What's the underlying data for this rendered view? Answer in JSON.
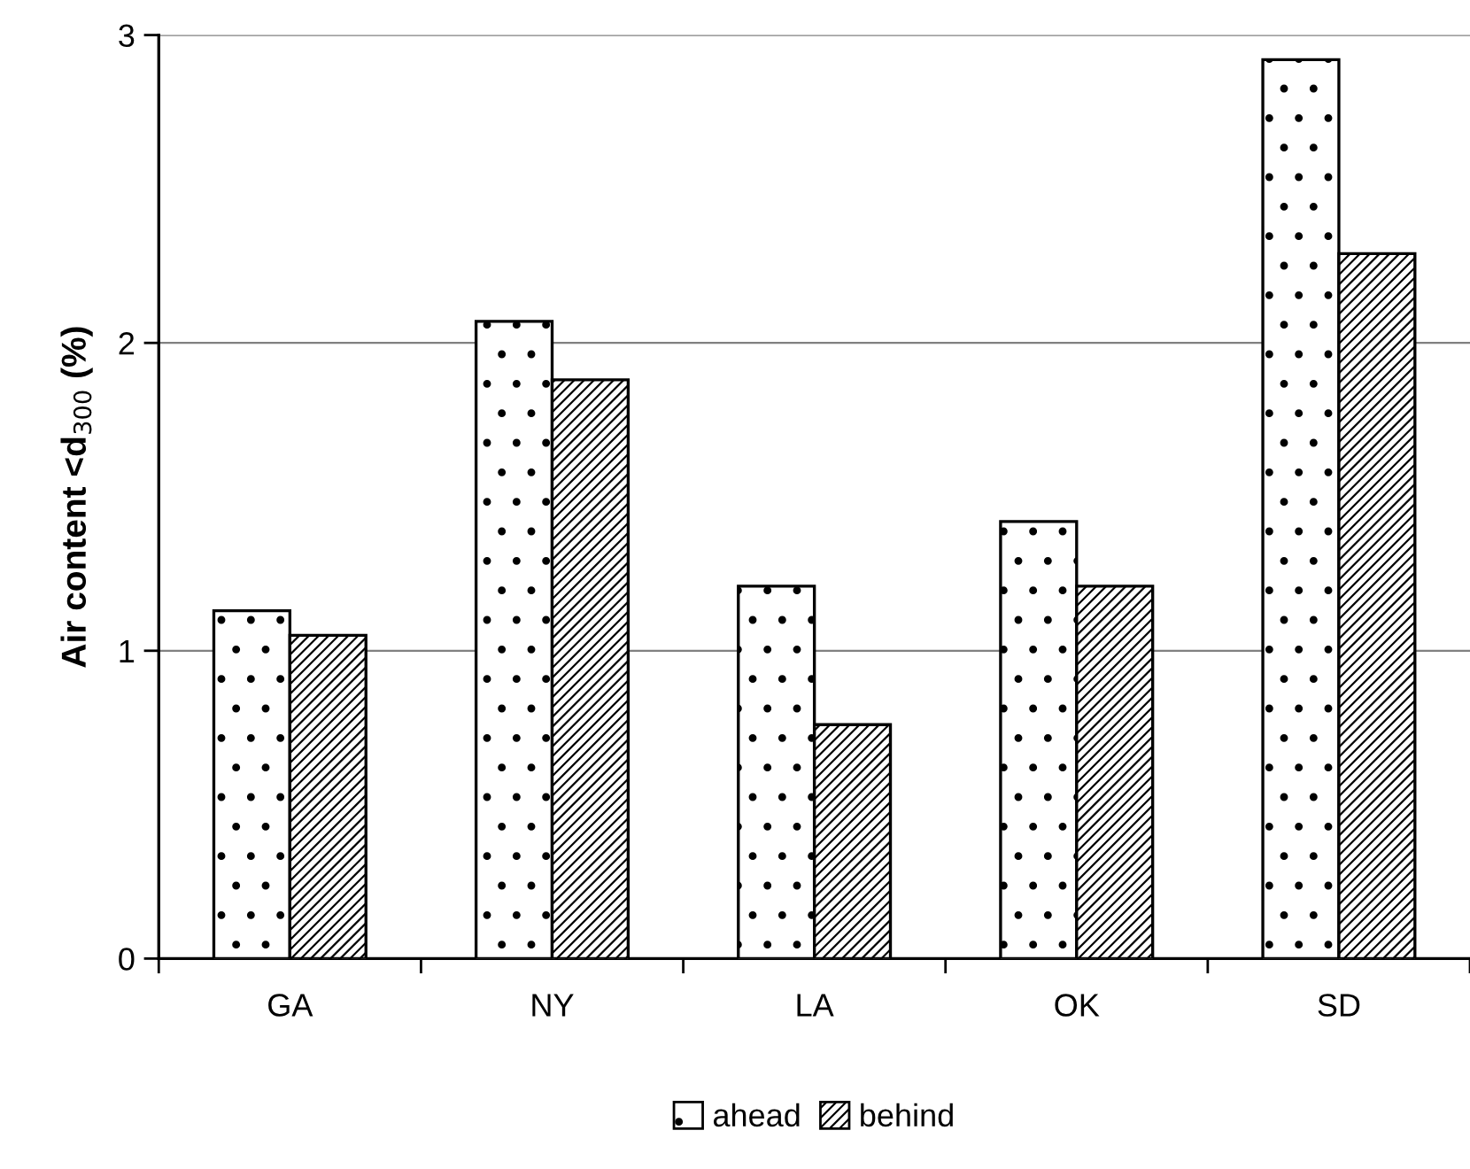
{
  "chart_data": {
    "type": "bar",
    "ylabel": "Air content <d$_{300}$ (%)",
    "categories": [
      "GA",
      "NY",
      "LA",
      "OK",
      "SD"
    ],
    "series": [
      {
        "name": "ahead",
        "color": "#000000",
        "values": [
          1.13,
          2.07,
          1.21,
          1.42,
          2.92
        ]
      },
      {
        "name": "behind",
        "color": "#000000",
        "values": [
          1.05,
          1.88,
          0.76,
          1.21,
          2.29
        ]
      }
    ],
    "ylim": [
      0,
      3
    ],
    "yticks": [
      0,
      1,
      2,
      3
    ],
    "grid": "y",
    "legend": "bottom"
  }
}
